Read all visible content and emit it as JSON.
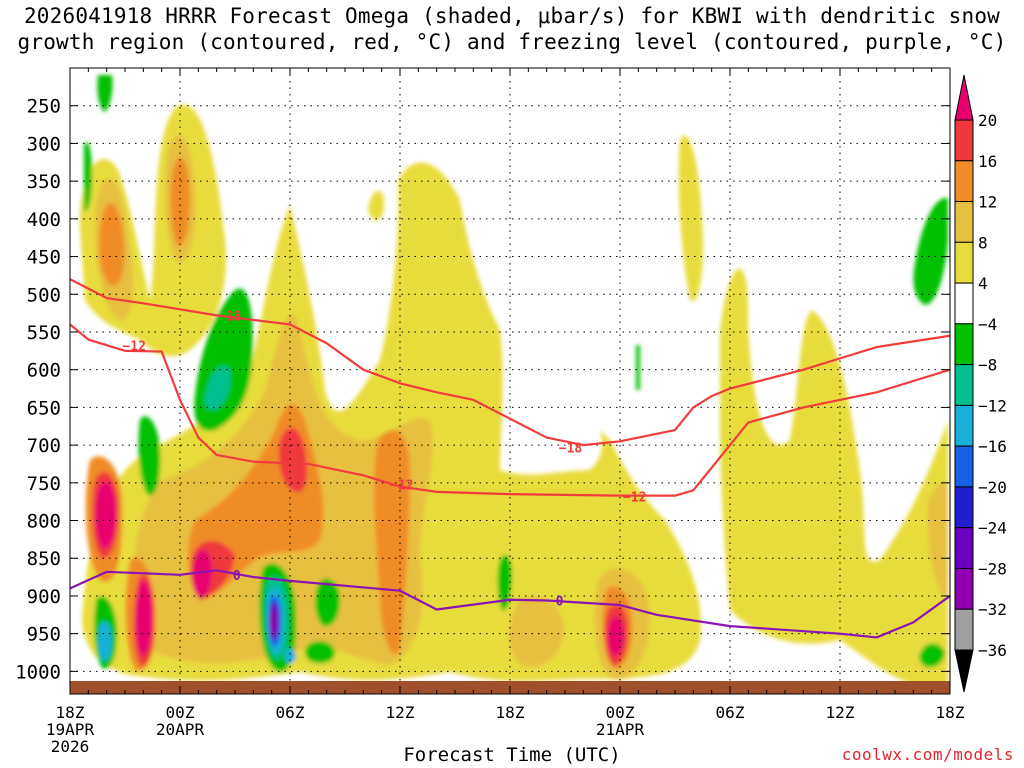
{
  "title_line1": "2026041918 HRRR Forecast Omega (shaded, μbar/s) for KBWI with dendritic snow",
  "title_line2": "growth region (contoured, red, °C) and freezing level (contoured, purple, °C)",
  "credit": "coolwx.com/models",
  "chart_data": {
    "type": "heatmap",
    "title": "2026041918 HRRR Forecast Omega (shaded, μbar/s) for KBWI",
    "xlabel": "Forecast Time (UTC)",
    "ylabel": "",
    "x_range_hours": [
      0,
      48
    ],
    "y_range_hpa": [
      1030,
      200
    ],
    "y_ticks": [
      250,
      300,
      350,
      400,
      450,
      500,
      550,
      600,
      650,
      700,
      750,
      800,
      850,
      900,
      950,
      1000
    ],
    "x_ticks": [
      {
        "hour": 0,
        "lines": [
          "18Z",
          "19APR",
          "2026"
        ]
      },
      {
        "hour": 6,
        "lines": [
          "00Z",
          "20APR"
        ]
      },
      {
        "hour": 12,
        "lines": [
          "06Z"
        ]
      },
      {
        "hour": 18,
        "lines": [
          "12Z"
        ]
      },
      {
        "hour": 24,
        "lines": [
          "18Z"
        ]
      },
      {
        "hour": 30,
        "lines": [
          "00Z",
          "21APR"
        ]
      },
      {
        "hour": 36,
        "lines": [
          "06Z"
        ]
      },
      {
        "hour": 42,
        "lines": [
          "12Z"
        ]
      },
      {
        "hour": 48,
        "lines": [
          "18Z"
        ]
      }
    ],
    "colorbar": {
      "levels": [
        "20",
        "16",
        "12",
        "8",
        "4",
        "−4",
        "−8",
        "−12",
        "−16",
        "−20",
        "−24",
        "−28",
        "−32",
        "−36"
      ],
      "colors": [
        "#e8006e",
        "#f0383c",
        "#f08c28",
        "#e8c040",
        "#e8dc3c",
        "#ffffff",
        "#00c000",
        "#00c090",
        "#18b0d8",
        "#1860e8",
        "#2020d0",
        "#6a00c0",
        "#9000b0",
        "#a0a0a0",
        "#000000"
      ]
    },
    "contours": [
      {
        "name": "dgz -12°C (lower)",
        "color": "#f03c3c",
        "label": "−12",
        "points": [
          [
            0,
            540
          ],
          [
            1,
            560
          ],
          [
            3,
            575
          ],
          [
            5,
            576
          ],
          [
            6,
            640
          ],
          [
            7,
            690
          ],
          [
            8,
            713
          ],
          [
            10,
            722
          ],
          [
            13,
            725
          ],
          [
            16,
            740
          ],
          [
            18,
            755
          ],
          [
            20,
            762
          ],
          [
            24,
            765
          ],
          [
            30,
            767
          ],
          [
            33,
            767
          ],
          [
            34,
            760
          ],
          [
            35,
            730
          ],
          [
            36,
            700
          ],
          [
            37,
            670
          ],
          [
            40,
            650
          ],
          [
            44,
            630
          ],
          [
            48,
            600
          ]
        ],
        "labels": [
          [
            3.5,
            568
          ],
          [
            18.1,
            752
          ],
          [
            30.8,
            768
          ]
        ]
      },
      {
        "name": "dgz -18°C (upper)",
        "color": "#f03c3c",
        "label": "−18",
        "points": [
          [
            0,
            480
          ],
          [
            2,
            505
          ],
          [
            4,
            512
          ],
          [
            6,
            520
          ],
          [
            8,
            528
          ],
          [
            12,
            540
          ],
          [
            14,
            565
          ],
          [
            16,
            600
          ],
          [
            18,
            618
          ],
          [
            20,
            630
          ],
          [
            22,
            640
          ],
          [
            26,
            690
          ],
          [
            28,
            700
          ],
          [
            30,
            695
          ],
          [
            32,
            685
          ],
          [
            33,
            680
          ],
          [
            34,
            650
          ],
          [
            35,
            635
          ],
          [
            36,
            625
          ],
          [
            40,
            600
          ],
          [
            42,
            585
          ],
          [
            44,
            570
          ],
          [
            48,
            555
          ]
        ],
        "labels": [
          [
            8.7,
            528
          ],
          [
            27.3,
            703
          ]
        ]
      },
      {
        "name": "freezing level 0°C",
        "color": "#8c14b4",
        "label": "0",
        "points": [
          [
            0,
            890
          ],
          [
            2,
            868
          ],
          [
            6,
            872
          ],
          [
            8,
            866
          ],
          [
            10,
            875
          ],
          [
            12,
            880
          ],
          [
            18,
            893
          ],
          [
            20,
            918
          ],
          [
            24,
            905
          ],
          [
            26,
            906
          ],
          [
            30,
            912
          ],
          [
            32,
            925
          ],
          [
            36,
            940
          ],
          [
            42,
            950
          ],
          [
            44,
            955
          ],
          [
            46,
            935
          ],
          [
            48,
            900
          ]
        ],
        "labels": [
          [
            9.1,
            872
          ],
          [
            26.7,
            906
          ]
        ]
      }
    ],
    "omega_regions": [
      {
        "value": 6,
        "x": 3.0,
        "p": 240,
        "w": 1.6,
        "h": 130
      },
      {
        "value": 14,
        "x": 2.5,
        "p": 310,
        "w": 0.9,
        "h": 40
      },
      {
        "value": 6,
        "x": 6.5,
        "p": 250,
        "w": 2.2,
        "h": 220
      },
      {
        "value": 14,
        "x": 6.0,
        "p": 260,
        "w": 0.9,
        "h": 100
      },
      {
        "value": 6,
        "x": 12.5,
        "p": 560,
        "w": 3.8,
        "h": 300
      },
      {
        "value": 14,
        "x": 11.8,
        "p": 600,
        "w": 1.6,
        "h": 170
      },
      {
        "value": 20,
        "x": 1.4,
        "p": 660,
        "w": 0.8,
        "h": 130
      },
      {
        "value": 20,
        "x": 4.1,
        "p": 850,
        "w": 0.6,
        "h": 120
      },
      {
        "value": 20,
        "x": 7.3,
        "p": 775,
        "w": 0.8,
        "h": 90
      },
      {
        "value": 20,
        "x": 30.0,
        "p": 900,
        "w": 0.8,
        "h": 60
      },
      {
        "value": -8,
        "x": 9.2,
        "p": 430,
        "w": 1.1,
        "h": 140
      },
      {
        "value": -28,
        "x": 11.0,
        "p": 850,
        "w": 0.7,
        "h": 90
      },
      {
        "value": -8,
        "x": 49.5,
        "p": 350,
        "w": 1.2,
        "h": 90
      }
    ]
  }
}
